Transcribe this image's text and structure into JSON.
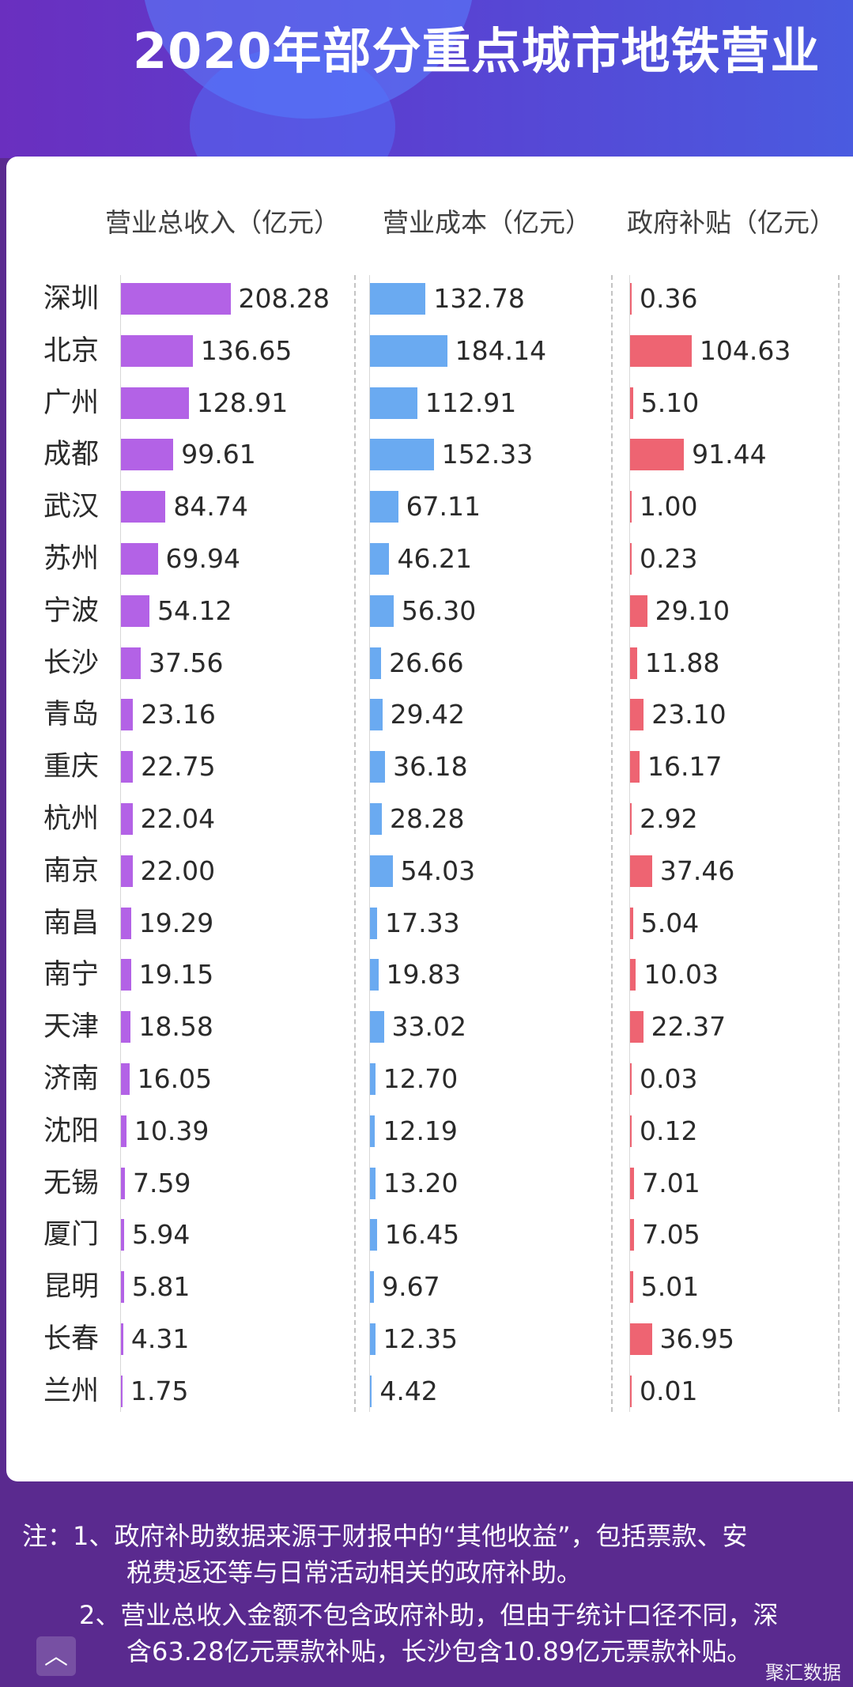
{
  "title": "2020年部分重点城市地铁营业",
  "chart_data": {
    "type": "bar",
    "orientation": "horizontal",
    "categories": [
      "深圳",
      "北京",
      "广州",
      "成都",
      "武汉",
      "苏州",
      "宁波",
      "长沙",
      "青岛",
      "重庆",
      "杭州",
      "南京",
      "南昌",
      "南宁",
      "天津",
      "济南",
      "沈阳",
      "无锡",
      "厦门",
      "昆明",
      "长春",
      "兰州"
    ],
    "series": [
      {
        "name": "营业总收入（亿元）",
        "color": "#b362e6",
        "values": [
          208.28,
          136.65,
          128.91,
          99.61,
          84.74,
          69.94,
          54.12,
          37.56,
          23.16,
          22.75,
          22.04,
          22.0,
          19.29,
          19.15,
          18.58,
          16.05,
          10.39,
          7.59,
          5.94,
          5.81,
          4.31,
          1.75
        ]
      },
      {
        "name": "营业成本（亿元）",
        "color": "#6aaaf1",
        "values": [
          132.78,
          184.14,
          112.91,
          152.33,
          67.11,
          46.21,
          56.3,
          26.66,
          29.42,
          36.18,
          28.28,
          54.03,
          17.33,
          19.83,
          33.02,
          12.7,
          12.19,
          13.2,
          16.45,
          9.67,
          12.35,
          4.42
        ]
      },
      {
        "name": "政府补贴（亿元）",
        "color": "#ee6472",
        "values": [
          0.36,
          104.63,
          5.1,
          91.44,
          1.0,
          0.23,
          29.1,
          11.88,
          23.1,
          16.17,
          2.92,
          37.46,
          5.04,
          10.03,
          22.37,
          0.03,
          0.12,
          7.01,
          7.05,
          5.01,
          36.95,
          0.01
        ]
      }
    ],
    "value_labels": [
      [
        "208.28",
        "136.65",
        "128.91",
        "99.61",
        "84.74",
        "69.94",
        "54.12",
        "37.56",
        "23.16",
        "22.75",
        "22.04",
        "22.00",
        "19.29",
        "19.15",
        "18.58",
        "16.05",
        "10.39",
        "7.59",
        "5.94",
        "5.81",
        "4.31",
        "1.75"
      ],
      [
        "132.78",
        "184.14",
        "112.91",
        "152.33",
        "67.11",
        "46.21",
        "56.30",
        "26.66",
        "29.42",
        "36.18",
        "28.28",
        "54.03",
        "17.33",
        "19.83",
        "33.02",
        "12.70",
        "12.19",
        "13.20",
        "16.45",
        "9.67",
        "12.35",
        "4.42"
      ],
      [
        "0.36",
        "104.63",
        "5.10",
        "91.44",
        "1.00",
        "0.23",
        "29.10",
        "11.88",
        "23.10",
        "16.17",
        "2.92",
        "37.46",
        "5.04",
        "10.03",
        "22.37",
        "0.03",
        "0.12",
        "7.01",
        "7.05",
        "5.01",
        "36.95",
        "0.01"
      ]
    ]
  },
  "notes": [
    "注：1、政府补助数据来源于财报中的“其他收益”，包括票款、安",
    "税费返还等与日常活动相关的政府补助。",
    "2、营业总收入金额不包含政府补助，但由于统计口径不同，深",
    "含63.28亿元票款补贴，长沙包含10.89亿元票款补贴。"
  ],
  "scroll_top_icon": "chevron-up-icon",
  "watermark": "聚汇数据"
}
